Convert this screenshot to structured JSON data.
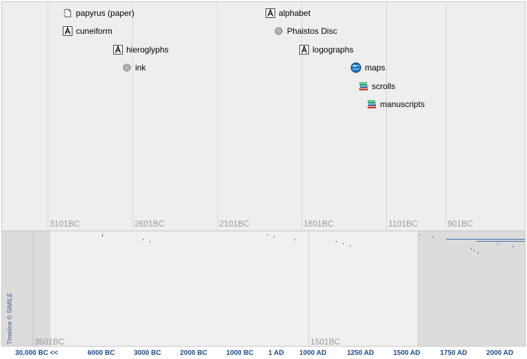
{
  "upper_band": {
    "tick_labels": [
      "3101BC",
      "2601BC",
      "2101BC",
      "1601BC",
      "1101BC",
      "901BC"
    ]
  },
  "events": [
    {
      "label": "papyrus (paper)",
      "icon": "document-icon"
    },
    {
      "label": "cuneiform",
      "icon": "letter-a-icon"
    },
    {
      "label": "hieroglyphs",
      "icon": "letter-a-icon"
    },
    {
      "label": "ink",
      "icon": "gear-icon"
    },
    {
      "label": "alphabet",
      "icon": "letter-a-icon"
    },
    {
      "label": "Phaistos Disc",
      "icon": "gear-icon"
    },
    {
      "label": "logographs",
      "icon": "letter-a-icon"
    },
    {
      "label": "maps",
      "icon": "globe-icon"
    },
    {
      "label": "scrolls",
      "icon": "books-icon"
    },
    {
      "label": "manuscripts",
      "icon": "books-icon"
    }
  ],
  "lower_band": {
    "tick_labels": [
      "3501BC",
      "1501BC"
    ]
  },
  "credit": "Timeline © SIMILE",
  "scale_labels": [
    "30,000 BC <<",
    "6000 BC",
    "3000 BC",
    "2000 BC",
    "1000 BC",
    "1 AD",
    "1000 AD",
    "1250 AD",
    "1500 AD",
    "1750 AD",
    "2000 AD"
  ],
  "colors": {
    "band_background": "#eeeeee",
    "grid_line": "#d6d6d6",
    "tick_text": "#9a9a9a",
    "scale_text": "#1d4a8a",
    "overview_shade": "#dcdcdc"
  }
}
